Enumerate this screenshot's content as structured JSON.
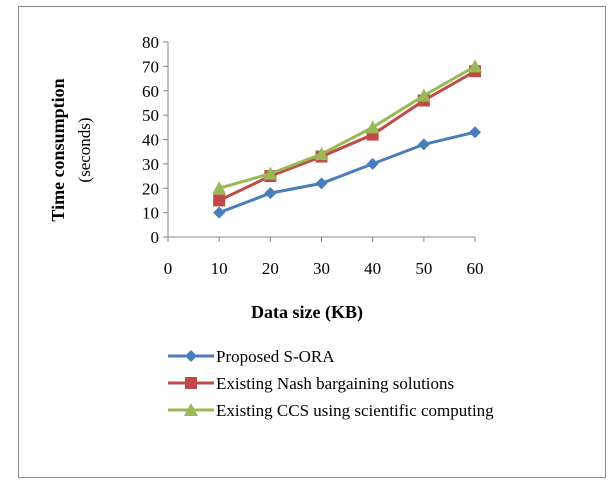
{
  "chart_data": {
    "type": "line",
    "x": [
      10,
      20,
      30,
      40,
      50,
      60
    ],
    "xlabel": "Data size (KB)",
    "ylabel": "Time consumption",
    "ylabel_sub": "(seconds)",
    "xlim": [
      0,
      60
    ],
    "ylim": [
      0,
      80
    ],
    "xticks": [
      0,
      10,
      20,
      30,
      40,
      50,
      60
    ],
    "yticks": [
      0,
      10,
      20,
      30,
      40,
      50,
      60,
      70,
      80
    ],
    "grid": false,
    "legend_position": "bottom",
    "series": [
      {
        "name": "Proposed S-ORA",
        "values": [
          10,
          18,
          22,
          30,
          38,
          43
        ],
        "color": "#4a7ebb",
        "marker": "diamond"
      },
      {
        "name": "Existing Nash bargaining solutions",
        "values": [
          15,
          25,
          33,
          42,
          56,
          68
        ],
        "color": "#be4b48",
        "marker": "square"
      },
      {
        "name": "Existing CCS using scientific computing",
        "values": [
          20,
          26,
          34,
          45,
          58,
          70
        ],
        "color": "#98b954",
        "marker": "triangle"
      }
    ]
  }
}
